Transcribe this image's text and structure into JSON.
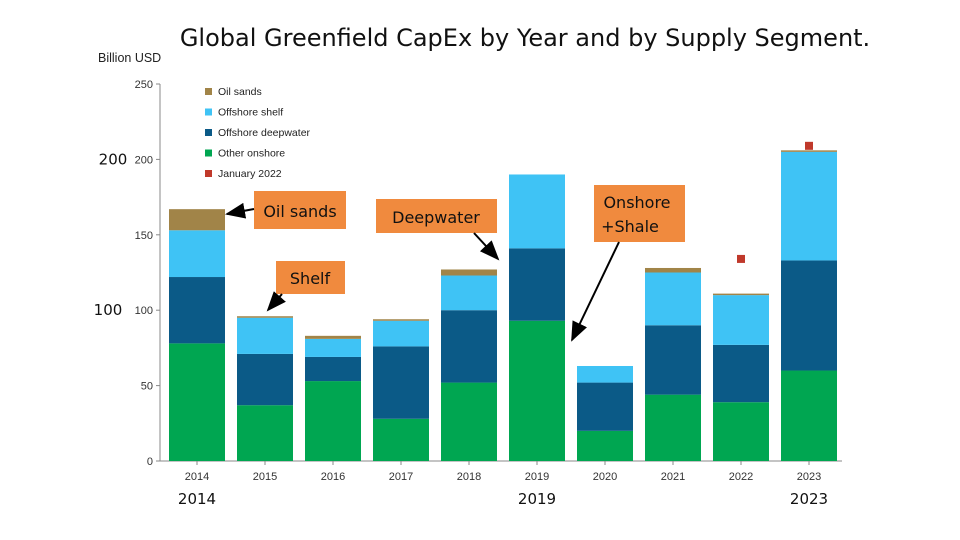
{
  "chart_data": {
    "type": "bar",
    "stacked": true,
    "title": "Global Greenfield CapEx by Year and by Supply Segment.",
    "ylabel": "Billion USD",
    "xlabel": "",
    "ylim": [
      0,
      250
    ],
    "yticks": [
      0,
      50,
      100,
      150,
      200,
      250
    ],
    "categories": [
      "2014",
      "2015",
      "2016",
      "2017",
      "2018",
      "2019",
      "2020",
      "2021",
      "2022",
      "2023"
    ],
    "series": [
      {
        "name": "Other onshore",
        "color": "#00A651",
        "values": [
          78,
          37,
          53,
          28,
          52,
          93,
          20,
          44,
          39,
          60
        ]
      },
      {
        "name": "Offshore deepwater",
        "color": "#0B5A87",
        "values": [
          44,
          34,
          16,
          48,
          48,
          48,
          32,
          46,
          38,
          73
        ]
      },
      {
        "name": "Offshore shelf",
        "color": "#3FC3F5",
        "values": [
          31,
          24,
          12,
          17,
          23,
          49,
          11,
          35,
          33,
          72
        ]
      },
      {
        "name": "Oil sands",
        "color": "#A18448",
        "values": [
          14,
          1,
          2,
          1,
          4,
          0,
          0,
          3,
          1,
          1
        ]
      }
    ],
    "markers": {
      "name": "January 2022",
      "color": "#C0392B",
      "values": [
        null,
        null,
        null,
        null,
        null,
        null,
        null,
        null,
        134,
        209
      ]
    },
    "legend_order": [
      "Oil sands",
      "Offshore shelf",
      "Offshore deepwater",
      "Other onshore",
      "January 2022"
    ],
    "legend_position": "top-left",
    "overlay_year_labels": [
      "2014",
      "2019",
      "2023"
    ],
    "overlay_value_labels": [
      "200",
      "100"
    ],
    "annotations": [
      {
        "text": "Oil sands",
        "target_category": "2014"
      },
      {
        "text": "Shelf",
        "target_category": "2015"
      },
      {
        "text": "Deepwater",
        "target_category": "2019"
      },
      {
        "text": "Onshore +Shale",
        "lines": [
          "Onshore",
          "+Shale"
        ],
        "target_category": "2019"
      }
    ],
    "callout_color": "#F08A3E",
    "grid": false
  }
}
